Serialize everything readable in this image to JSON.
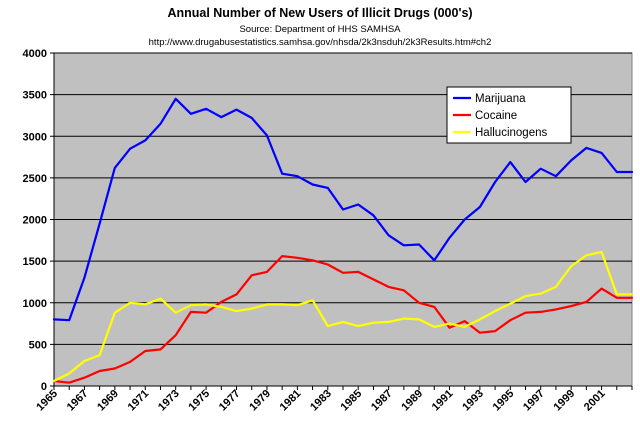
{
  "chart_data": {
    "type": "line",
    "title": "Annual Number of New Users of Illicit Drugs (000's)",
    "source_line": "Source:  Department of HHS SAMHSA",
    "url_line": "http://www.drugabusestatistics.samhsa.gov/nhsda/2k3nsduh/2k3Results.htm#ch2",
    "xlabel": "",
    "ylabel": "",
    "x": [
      1965,
      1966,
      1967,
      1968,
      1969,
      1970,
      1971,
      1972,
      1973,
      1974,
      1975,
      1976,
      1977,
      1978,
      1979,
      1980,
      1981,
      1982,
      1983,
      1984,
      1985,
      1986,
      1987,
      1988,
      1989,
      1990,
      1991,
      1992,
      1993,
      1994,
      1995,
      1996,
      1997,
      1998,
      1999,
      2000,
      2001,
      2002,
      2003
    ],
    "x_tick_labels": [
      "1965",
      "1967",
      "1969",
      "1971",
      "1973",
      "1975",
      "1977",
      "1979",
      "1981",
      "1983",
      "1985",
      "1987",
      "1989",
      "1991",
      "1993",
      "1995",
      "1997",
      "1999",
      "2001"
    ],
    "ylim": [
      0,
      4000
    ],
    "y_tick_labels": [
      "0",
      "500",
      "1000",
      "1500",
      "2000",
      "2500",
      "3000",
      "3500",
      "4000"
    ],
    "legend_position": "top-right",
    "grid": true,
    "plot_background": "#c0c0c0",
    "series": [
      {
        "name": "Marijuana",
        "color": "#0000ff",
        "values": [
          800,
          790,
          1300,
          1950,
          2620,
          2850,
          2950,
          3150,
          3450,
          3270,
          3330,
          3230,
          3320,
          3220,
          3010,
          2550,
          2520,
          2420,
          2380,
          2120,
          2180,
          2050,
          1810,
          1690,
          1700,
          1510,
          1780,
          2000,
          2150,
          2450,
          2690,
          2450,
          2610,
          2520,
          2710,
          2860,
          2800,
          2570,
          2570
        ]
      },
      {
        "name": "Cocaine",
        "color": "#ff0000",
        "values": [
          60,
          40,
          100,
          180,
          210,
          290,
          420,
          440,
          610,
          890,
          880,
          1010,
          1100,
          1330,
          1370,
          1560,
          1540,
          1510,
          1460,
          1360,
          1370,
          1280,
          1190,
          1150,
          1000,
          950,
          700,
          780,
          640,
          660,
          790,
          880,
          890,
          920,
          960,
          1010,
          1170,
          1060,
          1060
        ]
      },
      {
        "name": "Hallucinogens",
        "color": "#ffff00",
        "values": [
          60,
          150,
          300,
          370,
          880,
          1000,
          980,
          1050,
          880,
          970,
          980,
          950,
          900,
          930,
          980,
          980,
          970,
          1030,
          720,
          770,
          720,
          760,
          770,
          810,
          800,
          710,
          750,
          710,
          800,
          900,
          990,
          1080,
          1110,
          1190,
          1440,
          1570,
          1610,
          1100,
          1100
        ]
      }
    ]
  }
}
